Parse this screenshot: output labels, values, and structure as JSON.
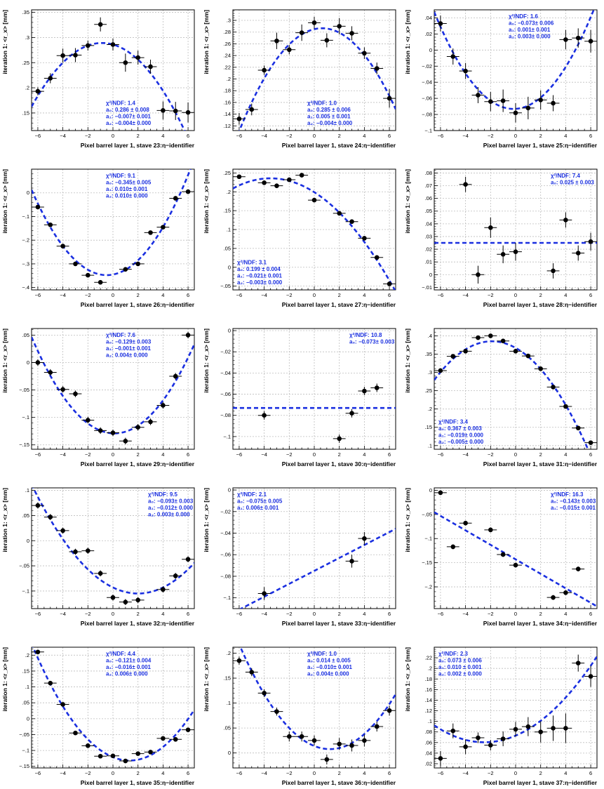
{
  "figure": {
    "ylabel": "iteration 1: <r_x> [mm]",
    "fit_color": "#1a2fe0",
    "point_color": "#000000"
  },
  "chart_data": [
    {
      "type": "scatter",
      "xlabel": "Pixel barrel layer 1, stave 23:η−identifier",
      "xlim": [
        -6.5,
        6.5
      ],
      "ylim": [
        0.115,
        0.355
      ],
      "yticks": [
        0.15,
        0.2,
        0.25,
        0.3,
        0.35
      ],
      "x": [
        -6,
        -5,
        -4,
        -3,
        -2,
        -1,
        0,
        1,
        2,
        3,
        4,
        5,
        6
      ],
      "y": [
        0.193,
        0.219,
        0.264,
        0.265,
        0.284,
        0.326,
        0.286,
        0.25,
        0.26,
        0.242,
        0.155,
        0.154,
        0.151
      ],
      "yerr": [
        0.008,
        0.01,
        0.014,
        0.014,
        0.01,
        0.014,
        0.012,
        0.018,
        0.014,
        0.014,
        0.018,
        0.018,
        0.02
      ],
      "fit": {
        "type": "pol2",
        "coeffs": [
          0.286,
          -0.007,
          -0.004
        ]
      },
      "stats": {
        "chi2ndf": "χ²/NDF: 1.4",
        "lines": [
          "a₀: 0.286 ± 0.008",
          "a₁: −0.007± 0.001",
          "a₂: −0.004± 0.000"
        ]
      },
      "stats_pos": "bottom-center"
    },
    {
      "type": "scatter",
      "xlabel": "Pixel barrel layer 1, stave 24:η−identifier",
      "xlim": [
        -6.5,
        6.5
      ],
      "ylim": [
        0.112,
        0.318
      ],
      "yticks": [
        0.12,
        0.14,
        0.16,
        0.18,
        0.2,
        0.22,
        0.24,
        0.26,
        0.28,
        0.3
      ],
      "x": [
        -6,
        -5,
        -4,
        -3,
        -2,
        -1,
        0,
        1,
        2,
        3,
        4,
        5,
        6
      ],
      "y": [
        0.132,
        0.148,
        0.215,
        0.265,
        0.25,
        0.279,
        0.296,
        0.266,
        0.29,
        0.278,
        0.244,
        0.218,
        0.167
      ],
      "yerr": [
        0.01,
        0.01,
        0.008,
        0.014,
        0.008,
        0.014,
        0.01,
        0.012,
        0.014,
        0.012,
        0.01,
        0.01,
        0.016
      ],
      "fit": {
        "type": "pol2",
        "coeffs": [
          0.285,
          0.005,
          -0.004
        ]
      },
      "stats": {
        "chi2ndf": "χ²/NDF: 1.0",
        "lines": [
          "a₀: 0.285 ± 0.006",
          "a₁: 0.005 ± 0.001",
          "a₂: −0.004± 0.000"
        ]
      },
      "stats_pos": "bottom-center"
    },
    {
      "type": "scatter",
      "xlabel": "Pixel barrel layer 1, stave 25:η−identifier",
      "xlim": [
        -6.5,
        6.5
      ],
      "ylim": [
        -0.1,
        0.05
      ],
      "yticks": [
        -0.1,
        -0.08,
        -0.06,
        -0.04,
        -0.02,
        0,
        0.02,
        0.04
      ],
      "x": [
        -6,
        -5,
        -4,
        -3,
        -2,
        -1,
        0,
        1,
        2,
        3,
        4,
        5,
        6
      ],
      "y": [
        0.033,
        -0.008,
        -0.026,
        -0.056,
        -0.064,
        -0.063,
        -0.078,
        -0.072,
        -0.062,
        -0.066,
        0.013,
        0.015,
        0.011
      ],
      "yerr": [
        0.01,
        0.01,
        0.01,
        0.01,
        0.012,
        0.014,
        0.012,
        0.014,
        0.012,
        0.01,
        0.012,
        0.012,
        0.014
      ],
      "fit": {
        "type": "pol2",
        "coeffs": [
          -0.073,
          0.001,
          0.003
        ]
      },
      "stats": {
        "chi2ndf": "χ²/NDF: 1.6",
        "lines": [
          "a₀: −0.073± 0.006",
          "a₁: 0.001± 0.001",
          "a₂: 0.003± 0.000"
        ]
      },
      "stats_pos": "top-center"
    },
    {
      "type": "scatter",
      "xlabel": "Pixel barrel layer 1, stave 26:η−identifier",
      "xlim": [
        -6.5,
        6.5
      ],
      "ylim": [
        -0.41,
        0.1
      ],
      "yticks": [
        -0.4,
        -0.3,
        -0.2,
        -0.1,
        0
      ],
      "x": [
        -6,
        -5,
        -4,
        -3,
        -2,
        -1,
        1,
        2,
        3,
        4,
        5,
        6
      ],
      "y": [
        -0.06,
        -0.135,
        -0.225,
        -0.3,
        -0.348,
        -0.378,
        -0.323,
        -0.3,
        -0.168,
        -0.145,
        -0.023,
        0.005
      ],
      "yerr": [
        0.008,
        0.008,
        0.008,
        0.008,
        0.008,
        0.008,
        0.008,
        0.008,
        0.008,
        0.008,
        0.008,
        0.008
      ],
      "fit": {
        "type": "pol2",
        "coeffs": [
          -0.345,
          0.01,
          0.01
        ]
      },
      "stats": {
        "chi2ndf": "χ²/NDF: 9.1",
        "lines": [
          "a₀: −0.345± 0.005",
          "a₁: 0.010± 0.001",
          "a₂: 0.010± 0.000"
        ]
      },
      "stats_pos": "top-center"
    },
    {
      "type": "scatter",
      "xlabel": "Pixel barrel layer 1, stave 27:η−identifier",
      "xlim": [
        -6.5,
        6.5
      ],
      "ylim": [
        -0.06,
        0.26
      ],
      "yticks": [
        -0.05,
        0,
        0.05,
        0.1,
        0.15,
        0.2,
        0.25
      ],
      "x": [
        -6,
        -4,
        -3,
        -2,
        -1,
        0,
        2,
        3,
        4,
        5,
        6
      ],
      "y": [
        0.24,
        0.224,
        0.216,
        0.232,
        0.244,
        0.178,
        0.143,
        0.121,
        0.077,
        0.026,
        -0.044
      ],
      "yerr": [
        0.006,
        0.006,
        0.006,
        0.006,
        0.006,
        0.006,
        0.006,
        0.006,
        0.006,
        0.006,
        0.006
      ],
      "fit": {
        "type": "pol2",
        "coeffs": [
          0.199,
          -0.021,
          -0.003
        ]
      },
      "stats": {
        "chi2ndf": "χ²/NDF: 3.1",
        "lines": [
          "a₀: 0.199 ± 0.004",
          "a₁: −0.021± 0.001",
          "a₂: −0.003± 0.000"
        ]
      },
      "stats_pos": "bottom-left"
    },
    {
      "type": "scatter",
      "xlabel": "Pixel barrel layer 1, stave 28:η−identifier",
      "xlim": [
        -6.5,
        6.5
      ],
      "ylim": [
        -0.012,
        0.083
      ],
      "yticks": [
        -0.01,
        0,
        0.01,
        0.02,
        0.03,
        0.04,
        0.05,
        0.06,
        0.07,
        0.08
      ],
      "x": [
        -4,
        -3,
        -2,
        -1,
        0,
        3,
        4,
        5,
        6
      ],
      "y": [
        0.071,
        0.0,
        0.037,
        0.016,
        0.018,
        0.003,
        0.043,
        0.017,
        0.026
      ],
      "yerr": [
        0.006,
        0.007,
        0.008,
        0.007,
        0.007,
        0.006,
        0.006,
        0.006,
        0.007
      ],
      "fit": {
        "type": "pol0",
        "coeffs": [
          0.025
        ]
      },
      "stats": {
        "chi2ndf": "χ²/NDF: 7.4",
        "lines": [
          "a₀: 0.025 ± 0.003"
        ]
      },
      "stats_pos": "top-right"
    },
    {
      "type": "scatter",
      "xlabel": "Pixel barrel layer 1, stave 29:η−identifier",
      "xlim": [
        -6.5,
        6.5
      ],
      "ylim": [
        -0.158,
        0.062
      ],
      "yticks": [
        -0.15,
        -0.1,
        -0.05,
        0,
        0.05
      ],
      "x": [
        -6,
        -5,
        -4,
        -3,
        -2,
        -1,
        0,
        1,
        2,
        3,
        4,
        5,
        6
      ],
      "y": [
        0.0,
        -0.018,
        -0.049,
        -0.057,
        -0.105,
        -0.124,
        -0.128,
        -0.143,
        -0.118,
        -0.108,
        -0.078,
        -0.025,
        0.05
      ],
      "yerr": [
        0.006,
        0.006,
        0.006,
        0.006,
        0.006,
        0.006,
        0.006,
        0.006,
        0.006,
        0.006,
        0.006,
        0.006,
        0.006
      ],
      "fit": {
        "type": "pol2",
        "coeffs": [
          -0.129,
          -0.001,
          0.004
        ]
      },
      "stats": {
        "chi2ndf": "χ²/NDF: 7.6",
        "lines": [
          "a₀: −0.129± 0.003",
          "a₁: −0.001± 0.001",
          "a₂: 0.004± 0.000"
        ]
      },
      "stats_pos": "top-center"
    },
    {
      "type": "scatter",
      "xlabel": "Pixel barrel layer 1, stave 30:η−identifier",
      "xlim": [
        -6.5,
        6.5
      ],
      "ylim": [
        -0.112,
        0.002
      ],
      "yticks": [
        -0.1,
        -0.08,
        -0.06,
        -0.04,
        -0.02,
        0
      ],
      "x": [
        -4,
        2,
        3,
        4,
        5
      ],
      "y": [
        -0.08,
        -0.102,
        -0.078,
        -0.057,
        -0.054
      ],
      "yerr": [
        0.004,
        0.004,
        0.004,
        0.004,
        0.004
      ],
      "fit": {
        "type": "pol0",
        "coeffs": [
          -0.073
        ]
      },
      "stats": {
        "chi2ndf": "χ²/NDF: 10.8",
        "lines": [
          "a₀: −0.073± 0.003"
        ]
      },
      "stats_pos": "top-right"
    },
    {
      "type": "scatter",
      "xlabel": "Pixel barrel layer 1, stave 31:η−identifier",
      "xlim": [
        -6.5,
        6.5
      ],
      "ylim": [
        0.09,
        0.42
      ],
      "yticks": [
        0.1,
        0.15,
        0.2,
        0.25,
        0.3,
        0.35,
        0.4
      ],
      "x": [
        -6,
        -5,
        -4,
        -3,
        -2,
        -1,
        0,
        1,
        2,
        3,
        4,
        5,
        6
      ],
      "y": [
        0.305,
        0.344,
        0.358,
        0.395,
        0.4,
        0.386,
        0.358,
        0.345,
        0.31,
        0.26,
        0.207,
        0.148,
        0.108
      ],
      "yerr": [
        0.006,
        0.006,
        0.006,
        0.006,
        0.006,
        0.006,
        0.006,
        0.006,
        0.006,
        0.006,
        0.006,
        0.006,
        0.006
      ],
      "fit": {
        "type": "pol2",
        "coeffs": [
          0.367,
          -0.019,
          -0.005
        ]
      },
      "stats": {
        "chi2ndf": "χ²/NDF: 3.4",
        "lines": [
          "a₀: 0.367 ± 0.003",
          "a₁: −0.019± 0.000",
          "a₂: −0.005± 0.000"
        ]
      },
      "stats_pos": "bottom-left"
    },
    {
      "type": "scatter",
      "xlabel": "Pixel barrel layer 1, stave 32:η−identifier",
      "xlim": [
        -6.5,
        6.5
      ],
      "ylim": [
        -0.135,
        0.105
      ],
      "yticks": [
        -0.1,
        -0.05,
        0,
        0.05,
        0.1
      ],
      "x": [
        -6,
        -5,
        -4,
        -3,
        -2,
        -1,
        0,
        1,
        2,
        4,
        5,
        6
      ],
      "y": [
        0.07,
        0.047,
        0.02,
        -0.022,
        -0.02,
        -0.065,
        -0.113,
        -0.122,
        -0.118,
        -0.097,
        -0.07,
        -0.037
      ],
      "yerr": [
        0.006,
        0.006,
        0.006,
        0.006,
        0.006,
        0.006,
        0.006,
        0.006,
        0.006,
        0.006,
        0.006,
        0.006
      ],
      "fit": {
        "type": "pol2",
        "coeffs": [
          -0.093,
          -0.012,
          0.003
        ]
      },
      "stats": {
        "chi2ndf": "χ²/NDF: 9.5",
        "lines": [
          "a₀: −0.093± 0.003",
          "a₁: −0.012± 0.000",
          "a₂: 0.003± 0.000"
        ]
      },
      "stats_pos": "top-right"
    },
    {
      "type": "scatter",
      "xlabel": "Pixel barrel layer 1, stave 33:η−identifier",
      "xlim": [
        -6.5,
        6.5
      ],
      "ylim": [
        -0.11,
        0.002
      ],
      "yticks": [
        -0.1,
        -0.08,
        -0.06,
        -0.04,
        -0.02,
        0
      ],
      "x": [
        -4,
        3,
        4
      ],
      "y": [
        -0.096,
        -0.066,
        -0.045
      ],
      "yerr": [
        0.006,
        0.006,
        0.006
      ],
      "fit": {
        "type": "pol1",
        "coeffs": [
          -0.075,
          0.006
        ]
      },
      "stats": {
        "chi2ndf": "χ²/NDF: 2.1",
        "lines": [
          "a₀: −0.075± 0.005",
          "a₁: 0.006± 0.001"
        ]
      },
      "stats_pos": "top-left"
    },
    {
      "type": "scatter",
      "xlabel": "Pixel barrel layer 1, stave 34:η−identifier",
      "xlim": [
        -6.5,
        6.5
      ],
      "ylim": [
        -0.245,
        0.005
      ],
      "yticks": [
        -0.2,
        -0.15,
        -0.1,
        -0.05,
        0
      ],
      "x": [
        -6,
        -5,
        -4,
        -2,
        -1,
        0,
        3,
        4,
        5
      ],
      "y": [
        -0.005,
        -0.117,
        -0.068,
        -0.082,
        -0.133,
        -0.155,
        -0.222,
        -0.212,
        -0.163
      ],
      "yerr": [
        0.005,
        0.005,
        0.005,
        0.005,
        0.005,
        0.005,
        0.005,
        0.005,
        0.005
      ],
      "fit": {
        "type": "pol1",
        "coeffs": [
          -0.143,
          -0.015
        ]
      },
      "stats": {
        "chi2ndf": "χ²/NDF: 16.3",
        "lines": [
          "a₀: −0.143± 0.003",
          "a₁: −0.015± 0.001"
        ]
      },
      "stats_pos": "top-right"
    },
    {
      "type": "scatter",
      "xlabel": "Pixel barrel layer 1, stave 35:η−identifier",
      "xlim": [
        -6.5,
        6.5
      ],
      "ylim": [
        -0.155,
        0.225
      ],
      "yticks": [
        -0.15,
        -0.1,
        -0.05,
        0,
        0.05,
        0.1,
        0.15,
        0.2
      ],
      "x": [
        -6,
        -5,
        -4,
        -3,
        -2,
        -1,
        0,
        1,
        2,
        3,
        4,
        5,
        6
      ],
      "y": [
        0.21,
        0.112,
        0.045,
        -0.045,
        -0.085,
        -0.118,
        -0.117,
        -0.133,
        -0.11,
        -0.105,
        -0.062,
        -0.065,
        -0.035
      ],
      "yerr": [
        0.006,
        0.006,
        0.006,
        0.006,
        0.006,
        0.006,
        0.006,
        0.006,
        0.006,
        0.006,
        0.006,
        0.006,
        0.006
      ],
      "fit": {
        "type": "pol2",
        "coeffs": [
          -0.121,
          -0.016,
          0.006
        ]
      },
      "stats": {
        "chi2ndf": "χ²/NDF: 4.4",
        "lines": [
          "a₀: −0.121± 0.004",
          "a₁: −0.016± 0.001",
          "a₂: 0.006± 0.000"
        ]
      },
      "stats_pos": "top-center"
    },
    {
      "type": "scatter",
      "xlabel": "Pixel barrel layer 1, stave 36:η−identifier",
      "xlim": [
        -6.5,
        6.5
      ],
      "ylim": [
        -0.03,
        0.212
      ],
      "yticks": [
        0,
        0.05,
        0.1,
        0.15,
        0.2
      ],
      "x": [
        -6,
        -5,
        -4,
        -3,
        -2,
        -1,
        0,
        1,
        2,
        3,
        4,
        5,
        6
      ],
      "y": [
        0.185,
        0.162,
        0.12,
        0.083,
        0.033,
        0.033,
        0.025,
        -0.013,
        0.018,
        0.015,
        0.025,
        0.053,
        0.085
      ],
      "yerr": [
        0.008,
        0.008,
        0.008,
        0.008,
        0.01,
        0.01,
        0.01,
        0.01,
        0.012,
        0.012,
        0.012,
        0.01,
        0.01
      ],
      "fit": {
        "type": "pol2",
        "coeffs": [
          0.014,
          -0.01,
          0.004
        ]
      },
      "stats": {
        "chi2ndf": "χ²/NDF: 1.0",
        "lines": [
          "a₀: 0.014 ± 0.005",
          "a₁: −0.010± 0.001",
          "a₂: 0.004± 0.000"
        ]
      },
      "stats_pos": "top-center"
    },
    {
      "type": "scatter",
      "xlabel": "Pixel barrel layer 1, stave 37:η−identifier",
      "xlim": [
        -6.5,
        6.5
      ],
      "ylim": [
        0.012,
        0.24
      ],
      "yticks": [
        0.02,
        0.04,
        0.06,
        0.08,
        0.1,
        0.12,
        0.14,
        0.16,
        0.18,
        0.2,
        0.22
      ],
      "x": [
        -6,
        -5,
        -4,
        -3,
        -2,
        -1,
        0,
        1,
        2,
        3,
        4,
        5,
        6
      ],
      "y": [
        0.03,
        0.082,
        0.052,
        0.069,
        0.055,
        0.067,
        0.085,
        0.09,
        0.08,
        0.087,
        0.087,
        0.21,
        0.185
      ],
      "yerr": [
        0.014,
        0.014,
        0.014,
        0.01,
        0.01,
        0.014,
        0.014,
        0.018,
        0.02,
        0.024,
        0.028,
        0.016,
        0.02
      ],
      "fit": {
        "type": "pol2",
        "coeffs": [
          0.073,
          0.01,
          0.002
        ]
      },
      "stats": {
        "chi2ndf": "χ²/NDF: 2.3",
        "lines": [
          "a₀: 0.073 ± 0.006",
          "a₁: 0.010 ± 0.001",
          "a₂: 0.002 ± 0.000"
        ]
      },
      "stats_pos": "top-left"
    }
  ]
}
